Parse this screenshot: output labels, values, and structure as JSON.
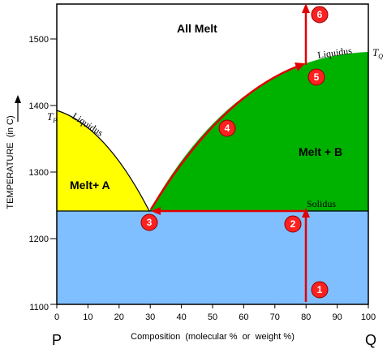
{
  "diagram": {
    "regions": {
      "all_melt": "All Melt",
      "melt_a": "Melt+ A",
      "melt_b": "Melt + B"
    },
    "curves": {
      "liquidus_left": "Liquidus",
      "liquidus_right": "Liquidus",
      "solidus": "Solidus"
    },
    "melting_points": {
      "tp": {
        "base": "T",
        "sub": "P"
      },
      "tq": {
        "base": "T",
        "sub": "Q"
      }
    },
    "x_axis": {
      "title": "Composition  (molecular %  or  weight %)",
      "ticks": [
        "0",
        "10",
        "20",
        "30",
        "40",
        "50",
        "60",
        "70",
        "80",
        "90",
        "100"
      ],
      "left_end": "P",
      "right_end": "Q"
    },
    "y_axis": {
      "title": "TEMPERATURE  (in C)",
      "ticks": [
        "1100",
        "1200",
        "1300",
        "1400",
        "1500"
      ]
    },
    "markers": [
      "1",
      "2",
      "3",
      "4",
      "5",
      "6"
    ],
    "colors": {
      "all_melt": "#ffffff",
      "melt_a": "#ffff00",
      "melt_b": "#00b200",
      "solid": "#80bfff",
      "path": "#e00000",
      "marker_fill": "#ff2020"
    }
  }
}
